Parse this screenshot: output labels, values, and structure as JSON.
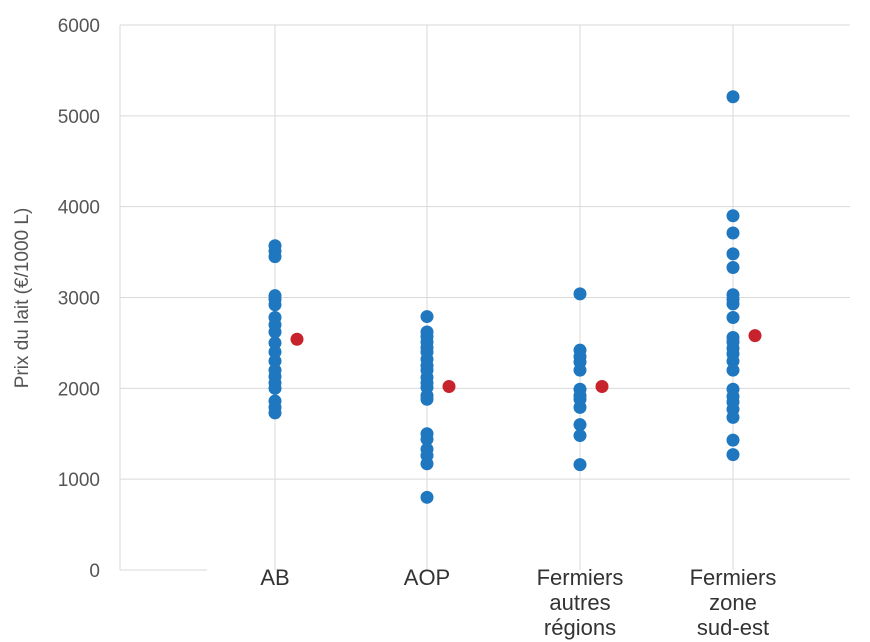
{
  "chart_data": {
    "type": "scatter",
    "title": "",
    "xlabel": "",
    "ylabel": "Prix du lait (€/1000 L)",
    "ylim": [
      0,
      6000
    ],
    "yticks": [
      0,
      1000,
      2000,
      3000,
      4000,
      5000,
      6000
    ],
    "grid": true,
    "legend": "none",
    "categories": [
      {
        "label_lines": [
          "AB"
        ]
      },
      {
        "label_lines": [
          "AOP"
        ]
      },
      {
        "label_lines": [
          "Fermiers",
          "autres",
          "régions"
        ]
      },
      {
        "label_lines": [
          "Fermiers",
          "zone",
          "sud-est"
        ]
      }
    ],
    "colors": {
      "points": "#1F77C0",
      "mean": "#C8232C",
      "grid": "#D9D9D9"
    },
    "series": [
      {
        "role": "points",
        "values": [
          [
            3570,
            3510,
            3450,
            3020,
            2980,
            2920,
            2780,
            2700,
            2620,
            2500,
            2400,
            2300,
            2200,
            2130,
            2060,
            2000,
            1860,
            1790,
            1730
          ],
          [
            2790,
            2620,
            2570,
            2510,
            2450,
            2400,
            2320,
            2250,
            2200,
            2120,
            2060,
            2010,
            1920,
            1880,
            1500,
            1440,
            1330,
            1260,
            1170,
            800
          ],
          [
            3040,
            2420,
            2350,
            2290,
            2200,
            1990,
            1920,
            1880,
            1790,
            1600,
            1480,
            1160
          ],
          [
            5210,
            3900,
            3710,
            3480,
            3330,
            3030,
            2980,
            2930,
            2780,
            2560,
            2510,
            2440,
            2380,
            2300,
            2200,
            1990,
            1910,
            1850,
            1770,
            1680,
            1430,
            1270
          ]
        ]
      },
      {
        "role": "mean",
        "values": [
          2540,
          2020,
          2020,
          2580
        ]
      }
    ]
  }
}
